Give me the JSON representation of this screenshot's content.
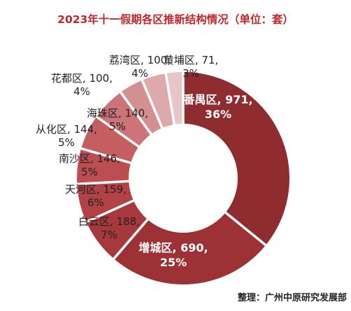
{
  "chart_data": {
    "type": "pie",
    "title": "2023年十一假期各区推新结构情况（单位：套）",
    "source": "整理：广州中原研究发展部",
    "slices": [
      {
        "name": "番禺区",
        "value": 971,
        "percent": "36%",
        "color": "#8e2c30"
      },
      {
        "name": "增城区",
        "value": 690,
        "percent": "25%",
        "color": "#9d3236"
      },
      {
        "name": "白云区",
        "value": 188,
        "percent": "7%",
        "color": "#a7393c"
      },
      {
        "name": "天河区",
        "value": 159,
        "percent": "6%",
        "color": "#b24245"
      },
      {
        "name": "南沙区",
        "value": 146,
        "percent": "5%",
        "color": "#bc4d50"
      },
      {
        "name": "从化区",
        "value": 144,
        "percent": "5%",
        "color": "#c55e60"
      },
      {
        "name": "海珠区",
        "value": 140,
        "percent": "5%",
        "color": "#cc7477"
      },
      {
        "name": "花都区",
        "value": 100,
        "percent": "4%",
        "color": "#d48f91"
      },
      {
        "name": "荔湾区",
        "value": 100,
        "percent": "4%",
        "color": "#dcaaab"
      },
      {
        "name": "黄埔区",
        "value": 71,
        "percent": "3%",
        "color": "#e6c6c7"
      }
    ]
  }
}
